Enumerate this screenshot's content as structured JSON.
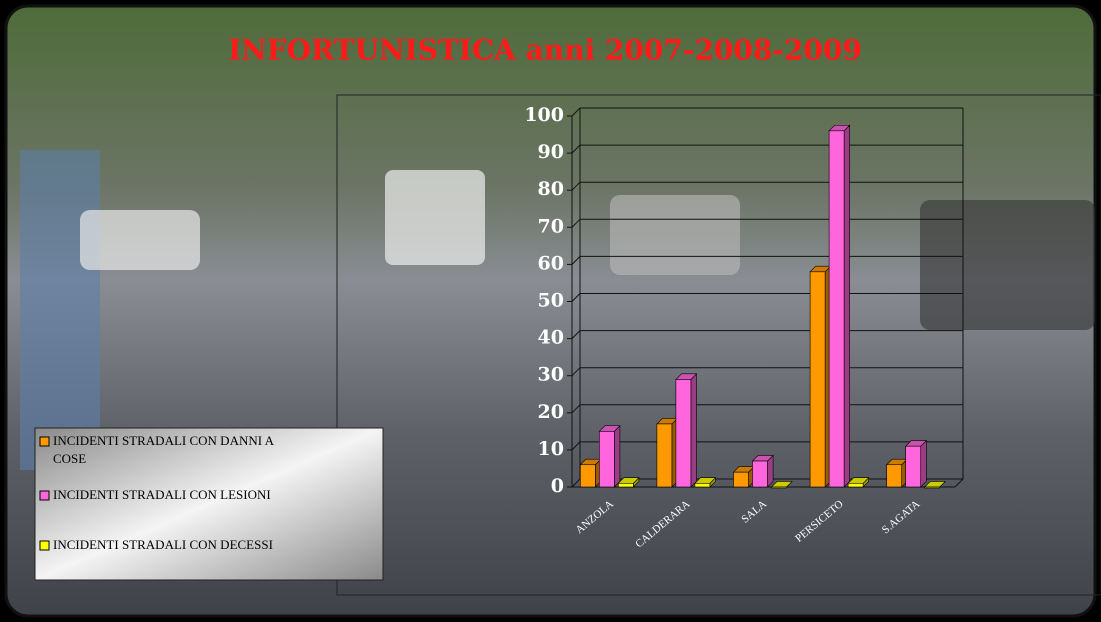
{
  "chart_data": {
    "type": "bar3d",
    "title": "INFORTUNISTICA  anni 2007-2008-2009",
    "categories": [
      "ANZOLA",
      "CALDERARA",
      "SALA",
      "PERSICETO",
      "S.AGATA"
    ],
    "series": [
      {
        "name": "INCIDENTI STRADALI CON DANNI A COSE",
        "color": "#ff9900",
        "values": [
          6,
          17,
          4,
          58,
          6
        ]
      },
      {
        "name": "INCIDENTI STRADALI CON LESIONI",
        "color": "#ff66dd",
        "values": [
          15,
          29,
          7,
          96,
          11
        ]
      },
      {
        "name": "INCIDENTI STRADALI CON DECESSI",
        "color": "#ffff00",
        "values": [
          1,
          1,
          0,
          1,
          0
        ]
      }
    ],
    "ylim": [
      0,
      100
    ],
    "yticks": [
      0,
      10,
      20,
      30,
      40,
      50,
      60,
      70,
      80,
      90,
      100
    ],
    "grid": true,
    "legend": "lower left"
  }
}
